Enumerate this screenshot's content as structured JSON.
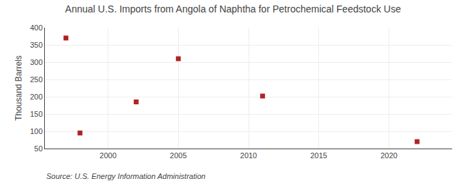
{
  "chart_data": {
    "type": "scatter",
    "title": "Annual U.S. Imports from Angola of Naphtha for Petrochemical Feedstock Use",
    "ylabel": "Thousand Barrels",
    "annotations": [
      "Source: U.S. Energy Information Administration"
    ],
    "x": [
      1997,
      1998,
      2002,
      2005,
      2011,
      2022
    ],
    "values": [
      370,
      95,
      185,
      310,
      202,
      70
    ],
    "color": "#b22222",
    "marker": "square",
    "xlim": [
      1995.5,
      2024.5
    ],
    "ylim": [
      50,
      400
    ],
    "xticks": [
      2000,
      2005,
      2010,
      2015,
      2020
    ],
    "yticks": [
      50,
      100,
      150,
      200,
      250,
      300,
      350,
      400
    ],
    "grid": true
  }
}
